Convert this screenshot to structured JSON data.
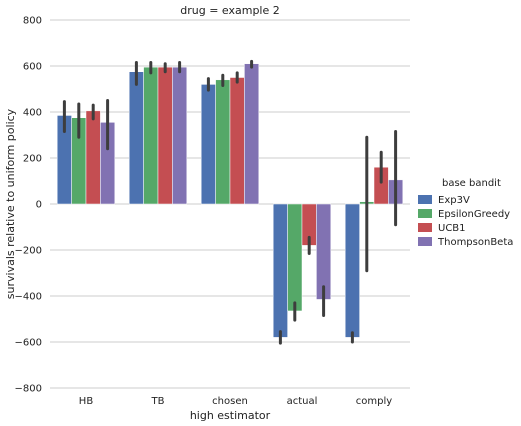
{
  "chart_data": {
    "type": "bar",
    "title": "drug = example 2",
    "xlabel": "high estimator",
    "ylabel": "survivals relative to uniform policy",
    "ylim": [
      -800,
      800
    ],
    "yticks": [
      -800,
      -600,
      -400,
      -200,
      0,
      200,
      400,
      600,
      800
    ],
    "grid": "horizontal",
    "legend_position": "right",
    "legend_title": "base bandit",
    "categories": [
      "HB",
      "TB",
      "chosen",
      "actual",
      "comply"
    ],
    "series": [
      {
        "name": "Exp3V",
        "color": "#4c72b0",
        "values": [
          385,
          575,
          520,
          -580,
          -580
        ],
        "err_low": [
          315,
          520,
          495,
          -605,
          -600
        ],
        "err_high": [
          445,
          615,
          545,
          -555,
          -560
        ]
      },
      {
        "name": "EpsilonGreedy",
        "color": "#55a868",
        "values": [
          375,
          595,
          540,
          -465,
          10
        ],
        "err_low": [
          290,
          570,
          515,
          -505,
          -290
        ],
        "err_high": [
          435,
          615,
          560,
          -430,
          290
        ]
      },
      {
        "name": "UCB1",
        "color": "#c44e52",
        "values": [
          405,
          595,
          550,
          -180,
          160
        ],
        "err_low": [
          370,
          575,
          530,
          -215,
          95
        ],
        "err_high": [
          430,
          610,
          570,
          -145,
          225
        ]
      },
      {
        "name": "ThompsonBeta",
        "color": "#8172b2",
        "values": [
          355,
          595,
          610,
          -415,
          105
        ],
        "err_low": [
          240,
          575,
          595,
          -485,
          -90
        ],
        "err_high": [
          450,
          615,
          620,
          -360,
          315
        ]
      }
    ]
  }
}
